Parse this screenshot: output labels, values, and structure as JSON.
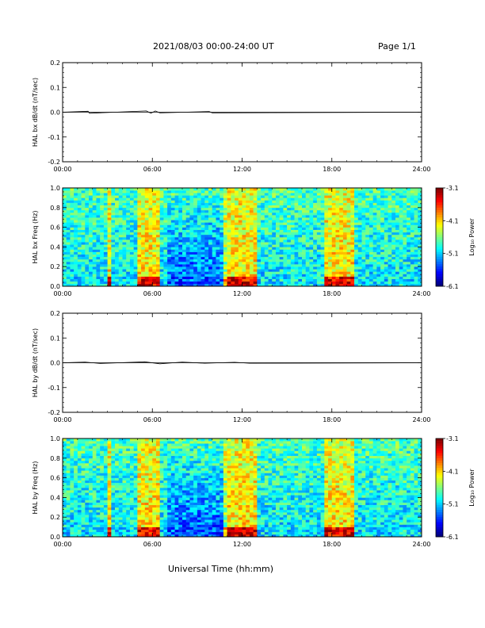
{
  "header": {
    "title": "2021/08/03  00:00-24:00 UT",
    "page": "Page 1/1"
  },
  "footer": {
    "xlabel": "Universal Time (hh:mm)"
  },
  "chart_data": [
    {
      "type": "line",
      "ylabel": "HAL bx dB/dt (nT/sec)",
      "ylim": [
        -0.2,
        0.2
      ],
      "yticks": [
        "0.2",
        "0.1",
        "0.0",
        "-0.1",
        "-0.2"
      ],
      "xticks": [
        "00:00",
        "06:00",
        "12:00",
        "18:00",
        "24:00"
      ],
      "xlim_hours": [
        0,
        24
      ],
      "x_hours": [
        0,
        1.7,
        1.8,
        5.6,
        5.9,
        6.2,
        6.5,
        9.8,
        10.0,
        24
      ],
      "y": [
        0.0,
        0.004,
        -0.004,
        0.005,
        -0.004,
        0.005,
        -0.003,
        0.003,
        -0.003,
        0.0
      ]
    },
    {
      "type": "heatmap",
      "ylabel": "HAL bx Freq (Hz)",
      "ylim": [
        0.0,
        1.0
      ],
      "yticks": [
        "1.0",
        "0.8",
        "0.6",
        "0.4",
        "0.2",
        "0.0"
      ],
      "xticks": [
        "00:00",
        "06:00",
        "12:00",
        "18:00",
        "24:00"
      ],
      "xlim_hours": [
        0,
        24
      ],
      "colorbar": {
        "label": "Log₁₀ Power",
        "min": -6.1,
        "max": -3.1,
        "ticks": [
          "-3.1",
          "-4.1",
          "-5.1",
          "-6.1"
        ]
      },
      "high_power_bands_hours": [
        [
          3.0,
          3.3
        ],
        [
          5.0,
          6.5
        ],
        [
          10.8,
          13.0
        ],
        [
          17.5,
          19.5
        ]
      ]
    },
    {
      "type": "line",
      "ylabel": "HAL by dB/dt (nT/sec)",
      "ylim": [
        -0.2,
        0.2
      ],
      "yticks": [
        "0.2",
        "0.1",
        "0.0",
        "-0.1",
        "-0.2"
      ],
      "xticks": [
        "00:00",
        "06:00",
        "12:00",
        "18:00",
        "24:00"
      ],
      "xlim_hours": [
        0,
        24
      ],
      "x_hours": [
        0,
        1.5,
        2.5,
        5.5,
        6.5,
        8.0,
        9.5,
        11.5,
        12.5,
        24
      ],
      "y": [
        0.0,
        0.003,
        -0.003,
        0.004,
        -0.004,
        0.003,
        -0.002,
        0.002,
        -0.002,
        0.0
      ]
    },
    {
      "type": "heatmap",
      "ylabel": "HAL by Freq (Hz)",
      "ylim": [
        0.0,
        1.0
      ],
      "yticks": [
        "1.0",
        "0.8",
        "0.6",
        "0.4",
        "0.2",
        "0.0"
      ],
      "xticks": [
        "00:00",
        "06:00",
        "12:00",
        "18:00",
        "24:00"
      ],
      "xlim_hours": [
        0,
        24
      ],
      "colorbar": {
        "label": "Log₁₀ Power",
        "min": -6.1,
        "max": -3.1,
        "ticks": [
          "-3.1",
          "-4.1",
          "-5.1",
          "-6.1"
        ]
      },
      "high_power_bands_hours": [
        [
          3.0,
          3.3
        ],
        [
          5.0,
          6.5
        ],
        [
          10.8,
          13.0
        ],
        [
          17.5,
          19.5
        ]
      ]
    }
  ]
}
